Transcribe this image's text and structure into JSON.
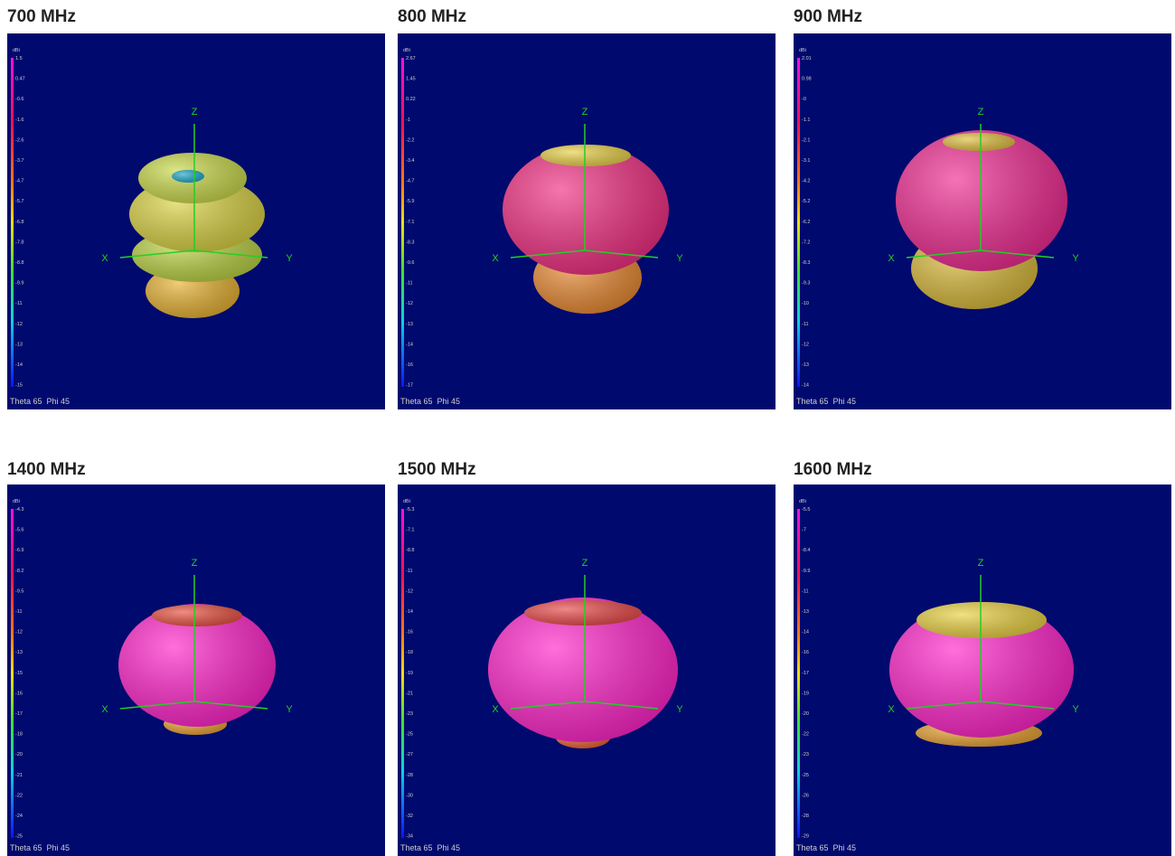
{
  "axes": {
    "z": "Z",
    "x": "X",
    "y": "Y"
  },
  "panels": [
    {
      "title": "700 MHz",
      "unit": "dBi",
      "view": "Theta 65  Phi 45",
      "scale": [
        "1.5",
        "0.47",
        "-0.6",
        "-1.6",
        "-2.6",
        "-3.7",
        "-4.7",
        "-5.7",
        "-6.8",
        "-7.8",
        "-8.8",
        "-9.9",
        "-11",
        "-12",
        "-13",
        "-14",
        "-15"
      ]
    },
    {
      "title": "800 MHz",
      "unit": "dBi",
      "view": "Theta 65  Phi 45",
      "scale": [
        "2.67",
        "1.45",
        "0.22",
        "-1",
        "-2.2",
        "-3.4",
        "-4.7",
        "-5.9",
        "-7.1",
        "-8.3",
        "-9.6",
        "-11",
        "-12",
        "-13",
        "-14",
        "-16",
        "-17"
      ]
    },
    {
      "title": "900 MHz",
      "unit": "dBi",
      "view": "Theta 65  Phi 45",
      "scale": [
        "2.01",
        "0.98",
        "-0",
        "-1.1",
        "-2.1",
        "-3.1",
        "-4.2",
        "-5.2",
        "-6.2",
        "-7.2",
        "-8.3",
        "-9.3",
        "-10",
        "-11",
        "-12",
        "-13",
        "-14"
      ]
    },
    {
      "title": "1400 MHz",
      "unit": "dBi",
      "view": "Theta 65  Phi 45",
      "scale": [
        "-4.3",
        "-5.6",
        "-6.9",
        "-8.2",
        "-9.5",
        "-11",
        "-12",
        "-13",
        "-15",
        "-16",
        "-17",
        "-18",
        "-20",
        "-21",
        "-22",
        "-24",
        "-25"
      ]
    },
    {
      "title": "1500 MHz",
      "unit": "dBi",
      "view": "Theta 65  Phi 45",
      "scale": [
        "-5.3",
        "-7.1",
        "-8.8",
        "-11",
        "-12",
        "-14",
        "-16",
        "-18",
        "-19",
        "-21",
        "-23",
        "-25",
        "-27",
        "-28",
        "-30",
        "-32",
        "-34"
      ]
    },
    {
      "title": "1600 MHz",
      "unit": "dBi",
      "view": "Theta 65  Phi 45",
      "scale": [
        "-5.5",
        "-7",
        "-8.4",
        "-9.9",
        "-11",
        "-13",
        "-14",
        "-16",
        "-17",
        "-19",
        "-20",
        "-22",
        "-23",
        "-25",
        "-26",
        "-28",
        "-29"
      ]
    }
  ]
}
